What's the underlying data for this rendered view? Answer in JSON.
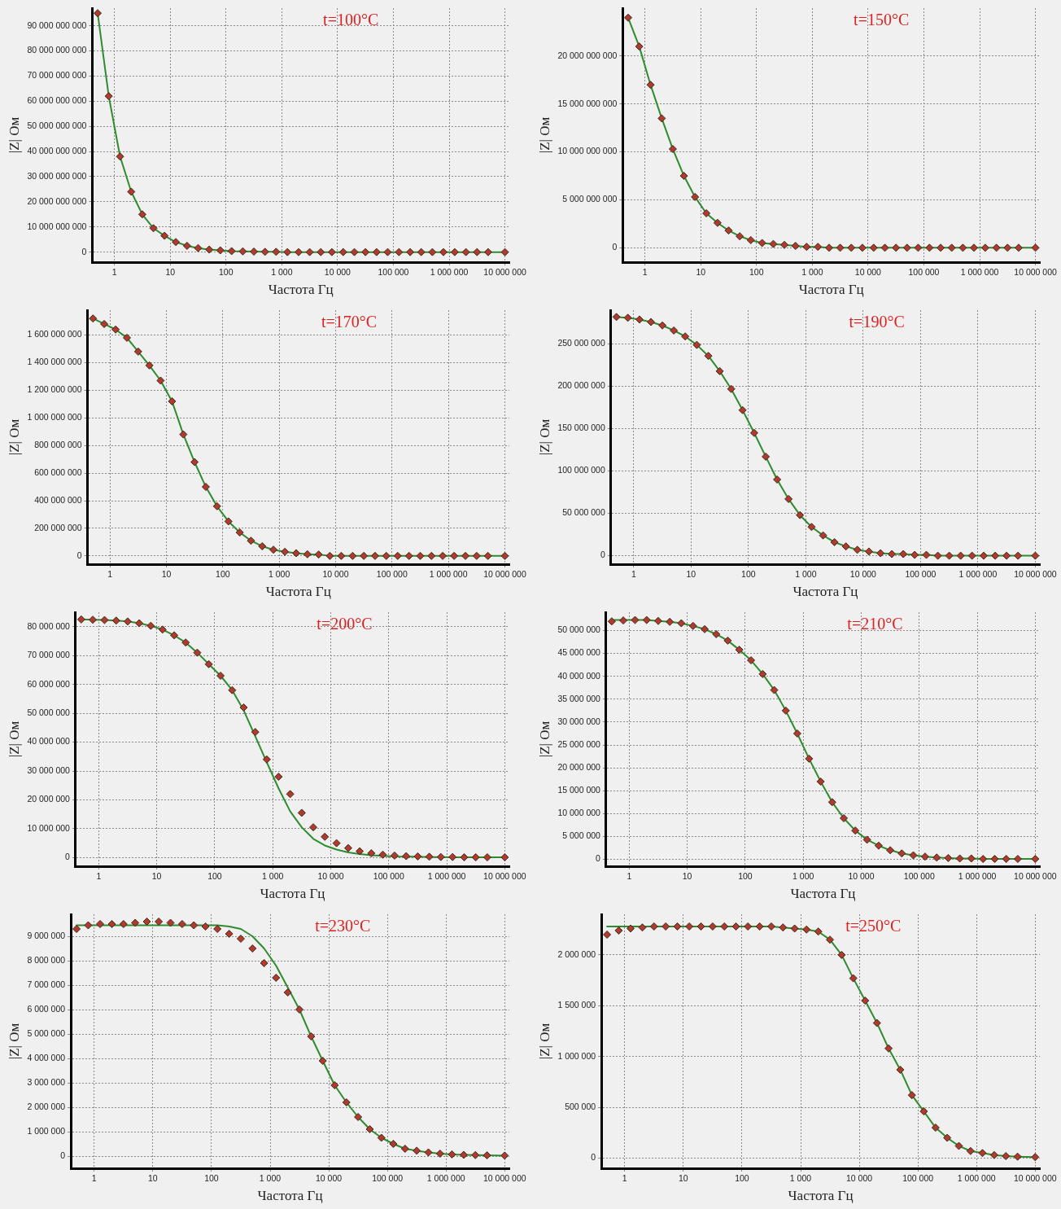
{
  "chart_data": [
    {
      "type": "line",
      "title": "t=100°C",
      "xlabel": "Частота Гц",
      "ylabel": "|Z| Ом",
      "log": "x",
      "grid": true,
      "x": [
        0.5,
        0.79,
        1.26,
        2,
        3.16,
        5,
        7.9,
        12.6,
        20,
        31.6,
        50,
        79,
        126,
        200,
        316,
        500,
        790,
        1260,
        2000,
        3160,
        5000,
        7900,
        12600,
        20000,
        31600,
        50000,
        79000,
        126000,
        200000,
        316000,
        500000,
        790000,
        1260000,
        2000000,
        3160000,
        5000000,
        10000000
      ],
      "xlim": [
        0.4,
        12000000
      ],
      "xticks": [
        1,
        10,
        100,
        {
          "value": 1000,
          "label": "1 000"
        },
        {
          "value": 10000,
          "label": "10 000"
        },
        {
          "value": 100000,
          "label": "100 000"
        },
        {
          "value": 1000000,
          "label": "1 000 000"
        },
        {
          "value": 10000000,
          "label": "10 000 000"
        }
      ],
      "ylim": [
        -4000000000,
        97000000000
      ],
      "yticks": [
        {
          "value": 0,
          "label": "0"
        },
        {
          "value": 10000000000,
          "label": "10 000 000 000"
        },
        {
          "value": 20000000000,
          "label": "20 000 000 000"
        },
        {
          "value": 30000000000,
          "label": "30 000 000 000"
        },
        {
          "value": 40000000000,
          "label": "40 000 000 000"
        },
        {
          "value": 50000000000,
          "label": "50 000 000 000"
        },
        {
          "value": 60000000000,
          "label": "60 000 000 000"
        },
        {
          "value": 70000000000,
          "label": "70 000 000 000"
        },
        {
          "value": 80000000000,
          "label": "80 000 000 000"
        },
        {
          "value": 90000000000,
          "label": "90 000 000 000"
        }
      ],
      "series": [
        {
          "type": "scatter",
          "marker": "diamond",
          "color": "#b03a2e",
          "values": [
            95000000000.0,
            62000000000.0,
            38000000000.0,
            24000000000.0,
            15000000000.0,
            9500000000.0,
            6500000000.0,
            4000000000.0,
            2500000000.0,
            1600000000.0,
            1000000000.0,
            700000000.0,
            400000000.0,
            300000000.0,
            200000000.0,
            100000000.0,
            100000000.0,
            0,
            0,
            0,
            0,
            0,
            0,
            0,
            0,
            0,
            0,
            0,
            0,
            0,
            0,
            0,
            0,
            0,
            0,
            0,
            0
          ]
        },
        {
          "type": "line",
          "color": "#2e8b2e",
          "values": [
            95000000000.0,
            62000000000.0,
            38000000000.0,
            24000000000.0,
            15000000000.0,
            9500000000.0,
            6500000000.0,
            4000000000.0,
            2500000000.0,
            1600000000.0,
            1000000000.0,
            700000000.0,
            400000000.0,
            300000000.0,
            200000000.0,
            100000000.0,
            100000000.0,
            0,
            0,
            0,
            0,
            0,
            0,
            0,
            0,
            0,
            0,
            0,
            0,
            0,
            0,
            0,
            0,
            0,
            0,
            0,
            0
          ]
        }
      ]
    },
    {
      "type": "line",
      "title": "t=150°C",
      "xlabel": "Частота Гц",
      "ylabel": "|Z| Ом",
      "log": "x",
      "grid": true,
      "x": [
        0.5,
        0.79,
        1.26,
        2,
        3.16,
        5,
        7.9,
        12.6,
        20,
        31.6,
        50,
        79,
        126,
        200,
        316,
        500,
        790,
        1260,
        2000,
        3160,
        5000,
        7900,
        12600,
        20000,
        31600,
        50000,
        79000,
        126000,
        200000,
        316000,
        500000,
        790000,
        1260000,
        2000000,
        3160000,
        5000000,
        10000000
      ],
      "xlim": [
        0.4,
        12000000
      ],
      "xticks": [
        1,
        10,
        100,
        {
          "value": 1000,
          "label": "1 000"
        },
        {
          "value": 10000,
          "label": "10 000"
        },
        {
          "value": 100000,
          "label": "100 000"
        },
        {
          "value": 1000000,
          "label": "1 000 000"
        },
        {
          "value": 10000000,
          "label": "10 000 000"
        }
      ],
      "ylim": [
        -1500000000,
        25000000000
      ],
      "yticks": [
        {
          "value": 0,
          "label": "0"
        },
        {
          "value": 5000000000,
          "label": "5 000 000 000"
        },
        {
          "value": 10000000000,
          "label": "10 000 000 000"
        },
        {
          "value": 15000000000,
          "label": "15 000 000 000"
        },
        {
          "value": 20000000000,
          "label": "20 000 000 000"
        }
      ],
      "series": [
        {
          "type": "scatter",
          "marker": "diamond",
          "color": "#b03a2e",
          "values": [
            24000000000.0,
            21000000000.0,
            17000000000.0,
            13500000000.0,
            10300000000.0,
            7500000000.0,
            5300000000.0,
            3600000000.0,
            2600000000.0,
            1800000000.0,
            1200000000.0,
            800000000.0,
            500000000.0,
            400000000.0,
            300000000.0,
            200000000.0,
            100000000.0,
            100000000.0,
            0,
            0,
            0,
            0,
            0,
            0,
            0,
            0,
            0,
            0,
            0,
            0,
            0,
            0,
            0,
            0,
            0,
            0,
            0
          ]
        },
        {
          "type": "line",
          "color": "#2e8b2e",
          "values": [
            24000000000.0,
            21000000000.0,
            17000000000.0,
            13500000000.0,
            10300000000.0,
            7500000000.0,
            5300000000.0,
            3600000000.0,
            2600000000.0,
            1800000000.0,
            1200000000.0,
            800000000.0,
            500000000.0,
            400000000.0,
            300000000.0,
            200000000.0,
            100000000.0,
            100000000.0,
            0,
            0,
            0,
            0,
            0,
            0,
            0,
            0,
            0,
            0,
            0,
            0,
            0,
            0,
            0,
            0,
            0,
            0,
            0
          ]
        }
      ]
    },
    {
      "type": "line",
      "title": "t=170°C",
      "xlabel": "Частота Гц",
      "ylabel": "|Z| Ом",
      "log": "x",
      "grid": true,
      "x": [
        0.5,
        0.79,
        1.26,
        2,
        3.16,
        5,
        7.9,
        12.6,
        20,
        31.6,
        50,
        79,
        126,
        200,
        316,
        500,
        790,
        1260,
        2000,
        3160,
        5000,
        7900,
        12600,
        20000,
        31600,
        50000,
        79000,
        126000,
        200000,
        316000,
        500000,
        790000,
        1260000,
        2000000,
        3160000,
        5000000,
        10000000
      ],
      "xlim": [
        0.4,
        12000000
      ],
      "xticks": [
        1,
        10,
        100,
        {
          "value": 1000,
          "label": "1 000"
        },
        {
          "value": 10000,
          "label": "10 000"
        },
        {
          "value": 100000,
          "label": "100 000"
        },
        {
          "value": 1000000,
          "label": "1 000 000"
        },
        {
          "value": 10000000,
          "label": "10 000 000"
        }
      ],
      "ylim": [
        -60000000,
        1780000000
      ],
      "yticks": [
        {
          "value": 0,
          "label": "0"
        },
        {
          "value": 200000000,
          "label": "200 000 000"
        },
        {
          "value": 400000000,
          "label": "400 000 000"
        },
        {
          "value": 600000000,
          "label": "600 000 000"
        },
        {
          "value": 800000000,
          "label": "800 000 000"
        },
        {
          "value": 1000000000,
          "label": "1 000 000 000"
        },
        {
          "value": 1200000000,
          "label": "1 200 000 000"
        },
        {
          "value": 1400000000,
          "label": "1 400 000 000"
        },
        {
          "value": 1600000000,
          "label": "1 600 000 000"
        }
      ],
      "series": [
        {
          "type": "scatter",
          "marker": "diamond",
          "color": "#b03a2e",
          "values": [
            1720000000.0,
            1680000000.0,
            1640000000.0,
            1580000000.0,
            1480000000.0,
            1380000000.0,
            1270000000.0,
            1120000000.0,
            880000000.0,
            680000000.0,
            500000000.0,
            360000000.0,
            250000000.0,
            170000000.0,
            110000000.0,
            70000000.0,
            45000000.0,
            30000000.0,
            20000000.0,
            12000000.0,
            10000000.0,
            0,
            0,
            0,
            0,
            0,
            0,
            0,
            0,
            0,
            0,
            0,
            0,
            0,
            0,
            0,
            0
          ]
        },
        {
          "type": "line",
          "color": "#2e8b2e",
          "values": [
            1720000000.0,
            1680000000.0,
            1640000000.0,
            1580000000.0,
            1480000000.0,
            1380000000.0,
            1270000000.0,
            1120000000.0,
            880000000.0,
            680000000.0,
            500000000.0,
            360000000.0,
            250000000.0,
            170000000.0,
            110000000.0,
            70000000.0,
            45000000.0,
            30000000.0,
            20000000.0,
            12000000.0,
            10000000.0,
            0,
            0,
            0,
            0,
            0,
            0,
            0,
            0,
            0,
            0,
            0,
            0,
            0,
            0,
            0,
            0
          ]
        }
      ]
    },
    {
      "type": "line",
      "title": "t=190°C",
      "xlabel": "Частота Гц",
      "ylabel": "|Z| Ом",
      "log": "x",
      "grid": true,
      "x": [
        0.5,
        0.79,
        1.26,
        2,
        3.16,
        5,
        7.9,
        12.6,
        20,
        31.6,
        50,
        79,
        126,
        200,
        316,
        500,
        790,
        1260,
        2000,
        3160,
        5000,
        7900,
        12600,
        20000,
        31600,
        50000,
        79000,
        126000,
        200000,
        316000,
        500000,
        790000,
        1260000,
        2000000,
        3160000,
        5000000,
        10000000
      ],
      "xlim": [
        0.4,
        12000000
      ],
      "xticks": [
        1,
        10,
        100,
        {
          "value": 1000,
          "label": "1 000"
        },
        {
          "value": 10000,
          "label": "10 000"
        },
        {
          "value": 100000,
          "label": "100 000"
        },
        {
          "value": 1000000,
          "label": "1 000 000"
        },
        {
          "value": 10000000,
          "label": "10 000 000"
        }
      ],
      "ylim": [
        -10000000,
        290000000
      ],
      "yticks": [
        {
          "value": 0,
          "label": "0"
        },
        {
          "value": 50000000,
          "label": "50 000 000"
        },
        {
          "value": 100000000,
          "label": "100 000 000"
        },
        {
          "value": 150000000,
          "label": "150 000 000"
        },
        {
          "value": 200000000,
          "label": "200 000 000"
        },
        {
          "value": 250000000,
          "label": "250 000 000"
        }
      ],
      "series": [
        {
          "type": "scatter",
          "marker": "diamond",
          "color": "#b03a2e",
          "values": [
            282000000.0,
            281000000.0,
            279000000.0,
            276000000.0,
            272000000.0,
            266000000.0,
            259000000.0,
            249000000.0,
            236000000.0,
            218000000.0,
            197000000.0,
            172000000.0,
            145000000.0,
            117000000.0,
            90000000.0,
            67000000.0,
            48000000.0,
            34000000.0,
            24000000.0,
            16000000.0,
            11000000.0,
            7000000.0,
            5000000.0,
            3000000.0,
            2000000.0,
            2000000.0,
            1000000.0,
            1000000.0,
            0,
            0,
            0,
            0,
            0,
            0,
            0,
            0,
            0
          ]
        },
        {
          "type": "line",
          "color": "#2e8b2e",
          "values": [
            282000000.0,
            281000000.0,
            279000000.0,
            276000000.0,
            272000000.0,
            266000000.0,
            259000000.0,
            249000000.0,
            236000000.0,
            218000000.0,
            197000000.0,
            172000000.0,
            145000000.0,
            117000000.0,
            90000000.0,
            67000000.0,
            48000000.0,
            34000000.0,
            24000000.0,
            16000000.0,
            11000000.0,
            7000000.0,
            5000000.0,
            3000000.0,
            2000000.0,
            2000000.0,
            1000000.0,
            1000000.0,
            0,
            0,
            0,
            0,
            0,
            0,
            0,
            0,
            0
          ]
        }
      ]
    },
    {
      "type": "line",
      "title": "t=200°C",
      "xlabel": "Частота Гц",
      "ylabel": "|Z| Ом",
      "log": "x",
      "grid": true,
      "x": [
        0.5,
        0.79,
        1.26,
        2,
        3.16,
        5,
        7.9,
        12.6,
        20,
        31.6,
        50,
        79,
        126,
        200,
        316,
        500,
        790,
        1260,
        2000,
        3160,
        5000,
        7900,
        12600,
        20000,
        31600,
        50000,
        79000,
        126000,
        200000,
        316000,
        500000,
        790000,
        1260000,
        2000000,
        3160000,
        5000000,
        10000000
      ],
      "xlim": [
        0.4,
        12000000
      ],
      "xticks": [
        1,
        10,
        100,
        {
          "value": 1000,
          "label": "1 000"
        },
        {
          "value": 10000,
          "label": "10 000"
        },
        {
          "value": 100000,
          "label": "100 000"
        },
        {
          "value": 1000000,
          "label": "1 000 000"
        },
        {
          "value": 10000000,
          "label": "10 000 000"
        }
      ],
      "ylim": [
        -3000000,
        85000000
      ],
      "yticks": [
        {
          "value": 0,
          "label": "0"
        },
        {
          "value": 10000000,
          "label": "10 000 000"
        },
        {
          "value": 20000000,
          "label": "20 000 000"
        },
        {
          "value": 30000000,
          "label": "30 000 000"
        },
        {
          "value": 40000000,
          "label": "40 000 000"
        },
        {
          "value": 50000000,
          "label": "50 000 000"
        },
        {
          "value": 60000000,
          "label": "60 000 000"
        },
        {
          "value": 70000000,
          "label": "70 000 000"
        },
        {
          "value": 80000000,
          "label": "80 000 000"
        }
      ],
      "series": [
        {
          "type": "scatter",
          "marker": "diamond",
          "color": "#b03a2e",
          "values": [
            82500000.0,
            82400000.0,
            82300000.0,
            82100000.0,
            81800000.0,
            81200000.0,
            80300000.0,
            79000000.0,
            77000000.0,
            74500000.0,
            71000000.0,
            67000000.0,
            63000000.0,
            58000000.0,
            52000000.0,
            43500000.0,
            34000000.0,
            28000000.0,
            22000000.0,
            15500000.0,
            10500000.0,
            7200000.0,
            5000000.0,
            3300000.0,
            2200000.0,
            1500000.0,
            1000000.0,
            700000.0,
            500000.0,
            400000.0,
            300000.0,
            200000.0,
            200000.0,
            100000.0,
            100000.0,
            100000.0,
            100000.0
          ]
        },
        {
          "type": "line",
          "color": "#2e8b2e",
          "values": [
            82500000.0,
            82400000.0,
            82300000.0,
            82100000.0,
            81800000.0,
            81200000.0,
            80300000.0,
            79000000.0,
            77000000.0,
            74500000.0,
            71000000.0,
            67000000.0,
            63000000.0,
            58000000.0,
            51000000.0,
            42000000.0,
            33000000.0,
            24000000.0,
            16000000.0,
            10500000.0,
            6500000.0,
            4200000.0,
            2800000.0,
            1800000.0,
            1200000.0,
            800000.0,
            600000.0,
            400000.0,
            300000.0,
            300000.0,
            200000.0,
            200000.0,
            100000.0,
            100000.0,
            100000.0,
            100000.0,
            100000.0
          ]
        }
      ]
    },
    {
      "type": "line",
      "title": "t=210°C",
      "xlabel": "Частота Гц",
      "ylabel": "|Z| Ом",
      "log": "x",
      "grid": true,
      "x": [
        0.5,
        0.79,
        1.26,
        2,
        3.16,
        5,
        7.9,
        12.6,
        20,
        31.6,
        50,
        79,
        126,
        200,
        316,
        500,
        790,
        1260,
        2000,
        3160,
        5000,
        7900,
        12600,
        20000,
        31600,
        50000,
        79000,
        126000,
        200000,
        316000,
        500000,
        790000,
        1260000,
        2000000,
        3160000,
        5000000,
        10000000
      ],
      "xlim": [
        0.4,
        12000000
      ],
      "xticks": [
        1,
        10,
        100,
        {
          "value": 1000,
          "label": "1 000"
        },
        {
          "value": 10000,
          "label": "10 000"
        },
        {
          "value": 100000,
          "label": "100 000"
        },
        {
          "value": 1000000,
          "label": "1 000 000"
        },
        {
          "value": 10000000,
          "label": "10 000 000"
        }
      ],
      "ylim": [
        -1500000,
        54000000
      ],
      "yticks": [
        {
          "value": 0,
          "label": "0"
        },
        {
          "value": 5000000,
          "label": "5 000 000"
        },
        {
          "value": 10000000,
          "label": "10 000 000"
        },
        {
          "value": 15000000,
          "label": "15 000 000"
        },
        {
          "value": 20000000,
          "label": "20 000 000"
        },
        {
          "value": 25000000,
          "label": "25 000 000"
        },
        {
          "value": 30000000,
          "label": "30 000 000"
        },
        {
          "value": 35000000,
          "label": "35 000 000"
        },
        {
          "value": 40000000,
          "label": "40 000 000"
        },
        {
          "value": 45000000,
          "label": "45 000 000"
        },
        {
          "value": 50000000,
          "label": "50 000 000"
        }
      ],
      "series": [
        {
          "type": "scatter",
          "marker": "diamond",
          "color": "#b03a2e",
          "values": [
            52000000.0,
            52200000.0,
            52300000.0,
            52300000.0,
            52100000.0,
            51900000.0,
            51600000.0,
            51000000.0,
            50300000.0,
            49200000.0,
            47800000.0,
            45800000.0,
            43500000.0,
            40500000.0,
            37000000.0,
            32500000.0,
            27500000.0,
            22000000.0,
            17000000.0,
            12500000.0,
            9000000.0,
            6300000.0,
            4300000.0,
            3000000.0,
            2000000.0,
            1300000.0,
            900000.0,
            600000.0,
            400000.0,
            300000.0,
            200000.0,
            200000.0,
            100000.0,
            100000.0,
            100000.0,
            100000.0,
            100000.0
          ]
        },
        {
          "type": "line",
          "color": "#2e8b2e",
          "values": [
            52300000.0,
            52300000.0,
            52300000.0,
            52300000.0,
            52100000.0,
            51900000.0,
            51600000.0,
            51000000.0,
            50300000.0,
            49200000.0,
            47800000.0,
            45800000.0,
            43500000.0,
            40500000.0,
            37000000.0,
            32500000.0,
            27500000.0,
            22000000.0,
            17000000.0,
            12500000.0,
            9000000.0,
            6300000.0,
            4300000.0,
            3000000.0,
            2000000.0,
            1300000.0,
            900000.0,
            600000.0,
            400000.0,
            300000.0,
            200000.0,
            200000.0,
            100000.0,
            100000.0,
            100000.0,
            100000.0,
            100000.0
          ]
        }
      ]
    },
    {
      "type": "line",
      "title": "t=230°C",
      "xlabel": "Частота Гц",
      "ylabel": "|Z| Ом",
      "log": "x",
      "grid": true,
      "x": [
        0.5,
        0.79,
        1.26,
        2,
        3.16,
        5,
        7.9,
        12.6,
        20,
        31.6,
        50,
        79,
        126,
        200,
        316,
        500,
        790,
        1260,
        2000,
        3160,
        5000,
        7900,
        12600,
        20000,
        31600,
        50000,
        79000,
        126000,
        200000,
        316000,
        500000,
        790000,
        1260000,
        2000000,
        3160000,
        5000000,
        10000000
      ],
      "xlim": [
        0.4,
        12000000
      ],
      "xticks": [
        1,
        10,
        100,
        {
          "value": 1000,
          "label": "1 000"
        },
        {
          "value": 10000,
          "label": "10 000"
        },
        {
          "value": 100000,
          "label": "100 000"
        },
        {
          "value": 1000000,
          "label": "1 000 000"
        },
        {
          "value": 10000000,
          "label": "10 000 000"
        }
      ],
      "ylim": [
        -500000,
        9900000
      ],
      "yticks": [
        {
          "value": 0,
          "label": "0"
        },
        {
          "value": 1000000,
          "label": "1 000 000"
        },
        {
          "value": 2000000,
          "label": "2 000 000"
        },
        {
          "value": 3000000,
          "label": "3 000 000"
        },
        {
          "value": 4000000,
          "label": "4 000 000"
        },
        {
          "value": 5000000,
          "label": "5 000 000"
        },
        {
          "value": 6000000,
          "label": "6 000 000"
        },
        {
          "value": 7000000,
          "label": "7 000 000"
        },
        {
          "value": 8000000,
          "label": "8 000 000"
        },
        {
          "value": 9000000,
          "label": "9 000 000"
        }
      ],
      "series": [
        {
          "type": "scatter",
          "marker": "diamond",
          "color": "#b03a2e",
          "values": [
            9300000.0,
            9450000.0,
            9500000.0,
            9500000.0,
            9500000.0,
            9550000.0,
            9600000.0,
            9600000.0,
            9550000.0,
            9500000.0,
            9450000.0,
            9400000.0,
            9300000.0,
            9100000.0,
            8900000.0,
            8500000.0,
            7900000.0,
            7300000.0,
            6700000.0,
            6000000.0,
            4900000.0,
            3900000.0,
            2900000.0,
            2200000.0,
            1600000.0,
            1100000.0,
            750000.0,
            500000.0,
            300000.0,
            220000.0,
            150000.0,
            100000.0,
            70000.0,
            50000.0,
            40000.0,
            30000.0,
            20000.0
          ]
        },
        {
          "type": "line",
          "color": "#2e8b2e",
          "values": [
            9450000.0,
            9450000.0,
            9450000.0,
            9450000.0,
            9450000.0,
            9450000.0,
            9450000.0,
            9450000.0,
            9450000.0,
            9450000.0,
            9450000.0,
            9450000.0,
            9450000.0,
            9400000.0,
            9300000.0,
            9000000.0,
            8500000.0,
            7800000.0,
            6900000.0,
            6000000.0,
            4900000.0,
            3900000.0,
            2900000.0,
            2200000.0,
            1600000.0,
            1100000.0,
            750000.0,
            500000.0,
            300000.0,
            220000.0,
            150000.0,
            100000.0,
            70000.0,
            50000.0,
            40000.0,
            30000.0,
            20000.0
          ]
        }
      ]
    },
    {
      "type": "line",
      "title": "t=250°C",
      "xlabel": "Частота Гц",
      "ylabel": "|Z| Ом",
      "log": "x",
      "grid": true,
      "x": [
        0.5,
        0.79,
        1.26,
        2,
        3.16,
        5,
        7.9,
        12.6,
        20,
        31.6,
        50,
        79,
        126,
        200,
        316,
        500,
        790,
        1260,
        2000,
        3160,
        5000,
        7900,
        12600,
        20000,
        31600,
        50000,
        79000,
        126000,
        200000,
        316000,
        500000,
        790000,
        1260000,
        2000000,
        3160000,
        5000000,
        10000000
      ],
      "xlim": [
        0.4,
        12000000
      ],
      "xticks": [
        1,
        10,
        100,
        {
          "value": 1000,
          "label": "1 000"
        },
        {
          "value": 10000,
          "label": "10 000"
        },
        {
          "value": 100000,
          "label": "100 000"
        },
        {
          "value": 1000000,
          "label": "1 000 000"
        },
        {
          "value": 10000000,
          "label": "10 000 000"
        }
      ],
      "ylim": [
        -100000,
        2400000
      ],
      "yticks": [
        {
          "value": 0,
          "label": "0"
        },
        {
          "value": 500000,
          "label": "500 000"
        },
        {
          "value": 1000000,
          "label": "1 000 000"
        },
        {
          "value": 1500000,
          "label": "1 500 000"
        },
        {
          "value": 2000000,
          "label": "2 000 000"
        }
      ],
      "series": [
        {
          "type": "scatter",
          "marker": "diamond",
          "color": "#b03a2e",
          "values": [
            2200000.0,
            2240000.0,
            2260000.0,
            2270000.0,
            2280000.0,
            2280000.0,
            2280000.0,
            2280000.0,
            2280000.0,
            2280000.0,
            2280000.0,
            2280000.0,
            2280000.0,
            2280000.0,
            2280000.0,
            2270000.0,
            2260000.0,
            2250000.0,
            2230000.0,
            2150000.0,
            2000000.0,
            1770000.0,
            1550000.0,
            1330000.0,
            1080000.0,
            870000.0,
            620000.0,
            460000.0,
            300000.0,
            200000.0,
            120000.0,
            70000.0,
            50000.0,
            30000.0,
            20000.0,
            15000.0,
            10000.0
          ]
        },
        {
          "type": "line",
          "color": "#2e8b2e",
          "values": [
            2280000.0,
            2280000.0,
            2280000.0,
            2280000.0,
            2280000.0,
            2280000.0,
            2280000.0,
            2280000.0,
            2280000.0,
            2280000.0,
            2280000.0,
            2280000.0,
            2280000.0,
            2280000.0,
            2280000.0,
            2270000.0,
            2260000.0,
            2250000.0,
            2230000.0,
            2150000.0,
            2000000.0,
            1770000.0,
            1550000.0,
            1330000.0,
            1080000.0,
            870000.0,
            620000.0,
            460000.0,
            300000.0,
            200000.0,
            120000.0,
            70000.0,
            50000.0,
            30000.0,
            20000.0,
            15000.0,
            10000.0
          ]
        }
      ]
    }
  ]
}
